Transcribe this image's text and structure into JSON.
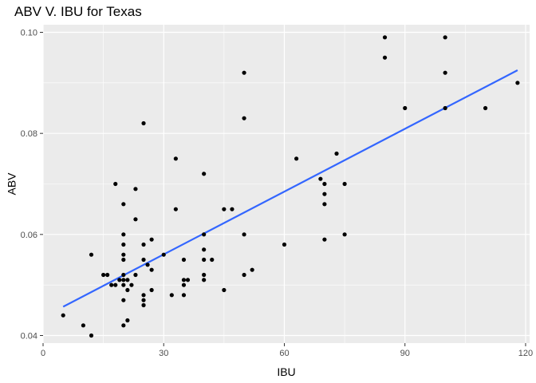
{
  "chart_data": {
    "type": "scatter",
    "title": "ABV V. IBU for Texas",
    "xlabel": "IBU",
    "ylabel": "ABV",
    "xlim": [
      0,
      121
    ],
    "ylim": [
      0.0385,
      0.1015
    ],
    "x_ticks": [
      0,
      30,
      60,
      90,
      120
    ],
    "x_tick_labels": [
      "0",
      "30",
      "60",
      "90",
      "120"
    ],
    "y_ticks": [
      0.04,
      0.06,
      0.08,
      0.1
    ],
    "y_tick_labels": [
      "0.04",
      "0.06",
      "0.08",
      "0.10"
    ],
    "grid": true,
    "background": "#ebebeb",
    "point_color": "#000000",
    "trend_color": "#3366ff",
    "points": [
      {
        "x": 5,
        "y": 0.044
      },
      {
        "x": 10,
        "y": 0.042
      },
      {
        "x": 12,
        "y": 0.04
      },
      {
        "x": 12,
        "y": 0.056
      },
      {
        "x": 15,
        "y": 0.052
      },
      {
        "x": 16,
        "y": 0.052
      },
      {
        "x": 17,
        "y": 0.05
      },
      {
        "x": 18,
        "y": 0.05
      },
      {
        "x": 18,
        "y": 0.07
      },
      {
        "x": 19,
        "y": 0.051
      },
      {
        "x": 20,
        "y": 0.042
      },
      {
        "x": 20,
        "y": 0.047
      },
      {
        "x": 20,
        "y": 0.05
      },
      {
        "x": 20,
        "y": 0.051
      },
      {
        "x": 20,
        "y": 0.052
      },
      {
        "x": 20,
        "y": 0.055
      },
      {
        "x": 20,
        "y": 0.056
      },
      {
        "x": 20,
        "y": 0.058
      },
      {
        "x": 20,
        "y": 0.06
      },
      {
        "x": 20,
        "y": 0.066
      },
      {
        "x": 21,
        "y": 0.043
      },
      {
        "x": 21,
        "y": 0.049
      },
      {
        "x": 21,
        "y": 0.051
      },
      {
        "x": 22,
        "y": 0.05
      },
      {
        "x": 23,
        "y": 0.052
      },
      {
        "x": 23,
        "y": 0.063
      },
      {
        "x": 23,
        "y": 0.069
      },
      {
        "x": 25,
        "y": 0.046
      },
      {
        "x": 25,
        "y": 0.047
      },
      {
        "x": 25,
        "y": 0.048
      },
      {
        "x": 25,
        "y": 0.055
      },
      {
        "x": 25,
        "y": 0.058
      },
      {
        "x": 25,
        "y": 0.082
      },
      {
        "x": 26,
        "y": 0.054
      },
      {
        "x": 27,
        "y": 0.049
      },
      {
        "x": 27,
        "y": 0.053
      },
      {
        "x": 27,
        "y": 0.059
      },
      {
        "x": 30,
        "y": 0.056
      },
      {
        "x": 32,
        "y": 0.048
      },
      {
        "x": 33,
        "y": 0.065
      },
      {
        "x": 33,
        "y": 0.075
      },
      {
        "x": 35,
        "y": 0.048
      },
      {
        "x": 35,
        "y": 0.05
      },
      {
        "x": 35,
        "y": 0.051
      },
      {
        "x": 35,
        "y": 0.055
      },
      {
        "x": 36,
        "y": 0.051
      },
      {
        "x": 40,
        "y": 0.051
      },
      {
        "x": 40,
        "y": 0.052
      },
      {
        "x": 40,
        "y": 0.055
      },
      {
        "x": 40,
        "y": 0.057
      },
      {
        "x": 40,
        "y": 0.06
      },
      {
        "x": 40,
        "y": 0.072
      },
      {
        "x": 42,
        "y": 0.055
      },
      {
        "x": 45,
        "y": 0.049
      },
      {
        "x": 45,
        "y": 0.065
      },
      {
        "x": 47,
        "y": 0.065
      },
      {
        "x": 50,
        "y": 0.052
      },
      {
        "x": 50,
        "y": 0.06
      },
      {
        "x": 50,
        "y": 0.083
      },
      {
        "x": 50,
        "y": 0.092
      },
      {
        "x": 52,
        "y": 0.053
      },
      {
        "x": 60,
        "y": 0.058
      },
      {
        "x": 63,
        "y": 0.075
      },
      {
        "x": 69,
        "y": 0.071
      },
      {
        "x": 70,
        "y": 0.059
      },
      {
        "x": 70,
        "y": 0.066
      },
      {
        "x": 70,
        "y": 0.068
      },
      {
        "x": 70,
        "y": 0.07
      },
      {
        "x": 73,
        "y": 0.076
      },
      {
        "x": 75,
        "y": 0.06
      },
      {
        "x": 75,
        "y": 0.07
      },
      {
        "x": 85,
        "y": 0.095
      },
      {
        "x": 85,
        "y": 0.099
      },
      {
        "x": 90,
        "y": 0.085
      },
      {
        "x": 100,
        "y": 0.085
      },
      {
        "x": 100,
        "y": 0.092
      },
      {
        "x": 100,
        "y": 0.099
      },
      {
        "x": 110,
        "y": 0.085
      },
      {
        "x": 118,
        "y": 0.09
      }
    ],
    "trend_line": {
      "method": "linear",
      "x": [
        5,
        118
      ],
      "y": [
        0.0457,
        0.0925
      ]
    }
  }
}
